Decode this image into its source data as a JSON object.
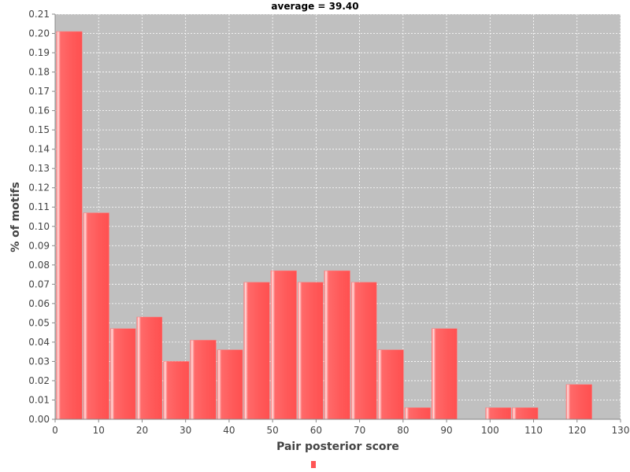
{
  "chart_data": {
    "type": "bar",
    "title": "average = 39.40",
    "xlabel": "Pair posterior score",
    "ylabel": "% of motifs",
    "xlim": [
      0,
      130
    ],
    "ylim": [
      0,
      0.21
    ],
    "x_ticks": [
      0,
      10,
      20,
      30,
      40,
      50,
      60,
      70,
      80,
      90,
      100,
      110,
      120,
      130
    ],
    "y_ticks": [
      0.0,
      0.01,
      0.02,
      0.03,
      0.04,
      0.05,
      0.06,
      0.07,
      0.08,
      0.09,
      0.1,
      0.11,
      0.12,
      0.13,
      0.14,
      0.15,
      0.16,
      0.17,
      0.18,
      0.19,
      0.2,
      0.21
    ],
    "bars": [
      {
        "x_start": 0.3,
        "x_end": 6.2,
        "value": 0.201
      },
      {
        "x_start": 6.5,
        "x_end": 12.4,
        "value": 0.107
      },
      {
        "x_start": 12.7,
        "x_end": 18.5,
        "value": 0.047
      },
      {
        "x_start": 18.8,
        "x_end": 24.6,
        "value": 0.053
      },
      {
        "x_start": 24.9,
        "x_end": 30.8,
        "value": 0.03
      },
      {
        "x_start": 31.1,
        "x_end": 37.0,
        "value": 0.041
      },
      {
        "x_start": 37.3,
        "x_end": 43.1,
        "value": 0.036
      },
      {
        "x_start": 43.4,
        "x_end": 49.3,
        "value": 0.071
      },
      {
        "x_start": 49.6,
        "x_end": 55.5,
        "value": 0.077
      },
      {
        "x_start": 55.8,
        "x_end": 61.6,
        "value": 0.071
      },
      {
        "x_start": 61.9,
        "x_end": 67.8,
        "value": 0.077
      },
      {
        "x_start": 68.1,
        "x_end": 73.9,
        "value": 0.071
      },
      {
        "x_start": 74.2,
        "x_end": 80.1,
        "value": 0.036
      },
      {
        "x_start": 80.4,
        "x_end": 86.3,
        "value": 0.006
      },
      {
        "x_start": 86.6,
        "x_end": 92.4,
        "value": 0.047
      },
      {
        "x_start": 99.0,
        "x_end": 104.8,
        "value": 0.006
      },
      {
        "x_start": 105.1,
        "x_end": 111.0,
        "value": 0.006
      },
      {
        "x_start": 117.5,
        "x_end": 123.4,
        "value": 0.018
      }
    ],
    "grid": true,
    "legend": "bottom-center",
    "colors": {
      "plot_background": "#c0c0c0",
      "grid": "#ffffff",
      "bar": "#ff5555",
      "bar_highlight": "#ffd5d5",
      "bar_edge": "#ff7777"
    }
  }
}
